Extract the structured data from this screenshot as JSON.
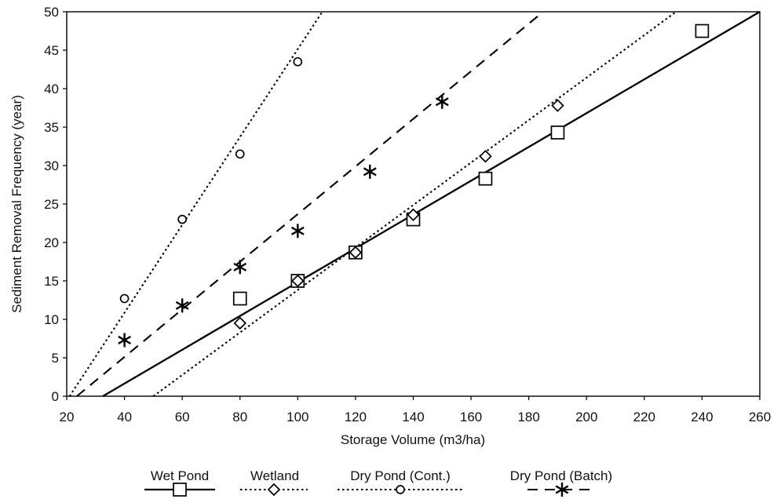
{
  "chart_data": {
    "type": "scatter",
    "title": "",
    "xlabel": "Storage Volume (m3/ha)",
    "ylabel": "Sediment Removal Frequency (year)",
    "xlim": [
      20,
      260
    ],
    "ylim": [
      0,
      50
    ],
    "x_ticks": [
      20,
      40,
      60,
      80,
      100,
      120,
      140,
      160,
      180,
      200,
      220,
      240,
      260
    ],
    "y_ticks": [
      0,
      5,
      10,
      15,
      20,
      25,
      30,
      35,
      40,
      45,
      50
    ],
    "grid": false,
    "legend_position": "bottom",
    "series": [
      {
        "name": "Wet Pond",
        "marker": "square",
        "line_style": "solid",
        "color": "#000000",
        "points": [
          [
            80,
            12.7
          ],
          [
            100,
            15
          ],
          [
            120,
            18.7
          ],
          [
            140,
            23
          ],
          [
            165,
            28.3
          ],
          [
            190,
            34.3
          ],
          [
            240,
            47.5
          ]
        ],
        "trendline": [
          [
            32.5,
            0
          ],
          [
            260,
            50
          ]
        ]
      },
      {
        "name": "Wetland",
        "marker": "diamond",
        "line_style": "dotted",
        "color": "#000000",
        "points": [
          [
            80,
            9.5
          ],
          [
            100,
            15
          ],
          [
            120,
            18.7
          ],
          [
            140,
            23.6
          ],
          [
            165,
            31.2
          ],
          [
            190,
            37.8
          ]
        ],
        "trendline": [
          [
            50,
            0
          ],
          [
            231,
            50
          ]
        ]
      },
      {
        "name": "Dry Pond (Cont.)",
        "marker": "circle",
        "line_style": "dotted",
        "color": "#000000",
        "points": [
          [
            40,
            12.7
          ],
          [
            60,
            23
          ],
          [
            80,
            31.5
          ],
          [
            100,
            43.5
          ]
        ],
        "trendline": [
          [
            21,
            0
          ],
          [
            108.5,
            50
          ]
        ]
      },
      {
        "name": "Dry Pond (Batch)",
        "marker": "asterisk",
        "line_style": "dashed",
        "color": "#000000",
        "points": [
          [
            40,
            7.3
          ],
          [
            60,
            11.8
          ],
          [
            80,
            16.8
          ],
          [
            100,
            21.5
          ],
          [
            125,
            29.2
          ],
          [
            150,
            38.3
          ]
        ],
        "trendline": [
          [
            23.5,
            0
          ],
          [
            185,
            50
          ]
        ]
      }
    ]
  }
}
